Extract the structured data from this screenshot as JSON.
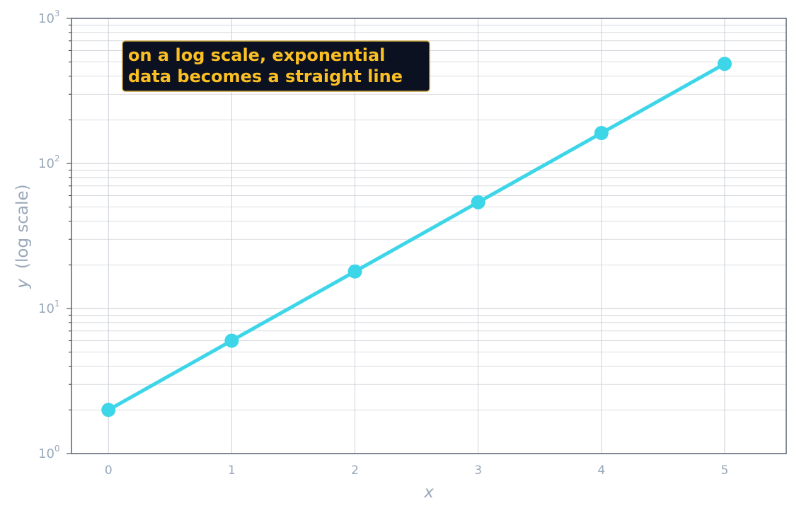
{
  "chart_data": {
    "type": "line",
    "title": "",
    "xlabel": "x",
    "ylabel_var": "y",
    "ylabel_suffix": "(log scale)",
    "x": [
      0,
      1,
      2,
      3,
      4,
      5
    ],
    "series": [
      {
        "values": [
          2,
          6,
          18,
          54,
          162,
          486
        ]
      }
    ],
    "xlim": [
      -0.3,
      5.5
    ],
    "ylim": [
      1,
      1000
    ],
    "yscale": "log",
    "x_ticks": [
      "0",
      "1",
      "2",
      "3",
      "4",
      "5"
    ],
    "y_ticks": [
      {
        "base": "10",
        "exp": "0"
      },
      {
        "base": "10",
        "exp": "1"
      },
      {
        "base": "10",
        "exp": "2"
      },
      {
        "base": "10",
        "exp": "3"
      }
    ],
    "grid": true,
    "annotation": {
      "line1": "on a log scale, exponential",
      "line2": "data becomes a straight line"
    },
    "colors": {
      "line": "#3dd5e8",
      "frame": "#556070",
      "grid": "#c4c9d0",
      "annotation_bg": "#0b1120",
      "annotation_border": "#c9a43a",
      "annotation_text": "#fbbf24"
    }
  }
}
